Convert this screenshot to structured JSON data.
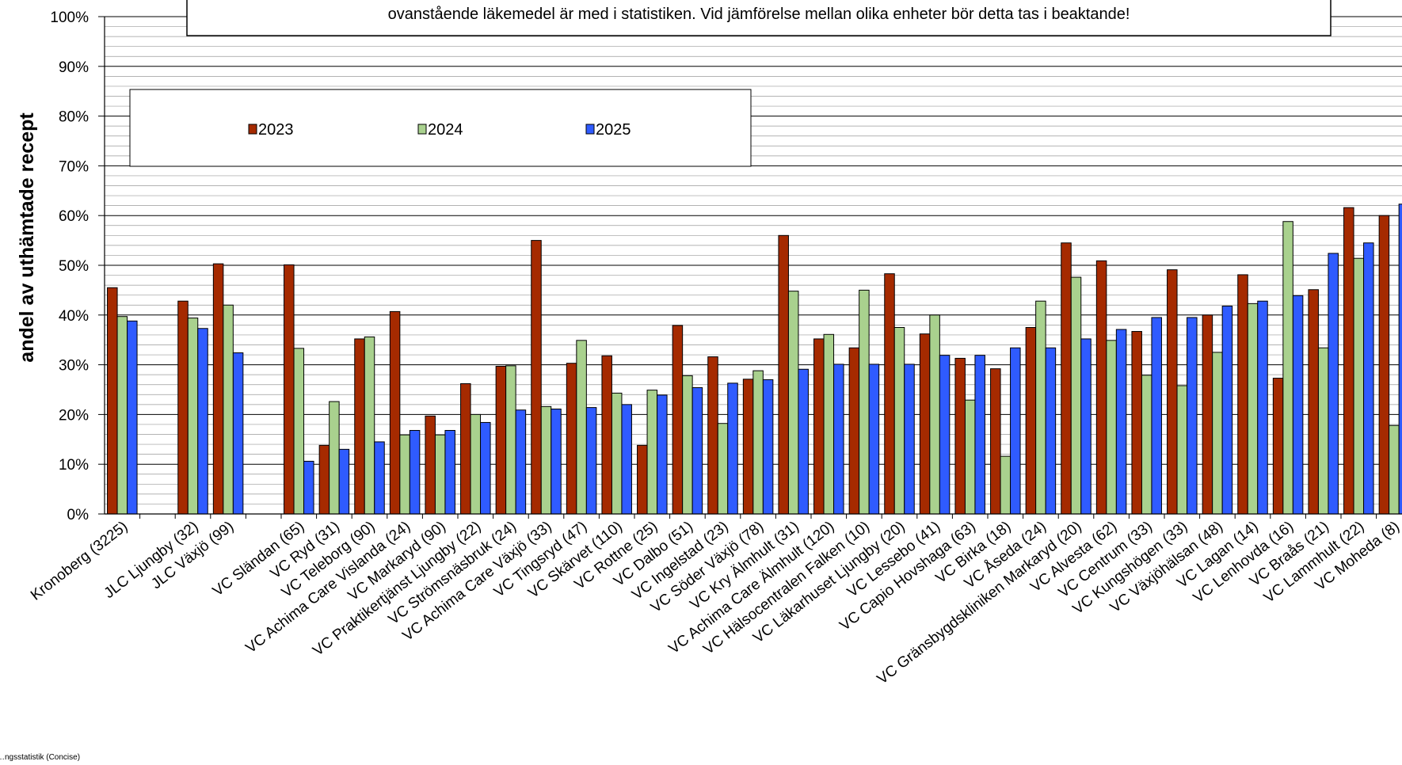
{
  "chart_data": {
    "type": "bar",
    "title": "",
    "ylabel": "andel av uthämtade recept",
    "xlabel": "",
    "ylim": [
      0,
      100
    ],
    "y_ticks": [
      "0%",
      "10%",
      "20%",
      "30%",
      "40%",
      "50%",
      "60%",
      "70%",
      "80%",
      "90%",
      "100%"
    ],
    "grid": true,
    "legend_placement": "top-left",
    "note": "ovanstående läkemedel är med i statistiken. Vid jämförelse mellan olika enheter bör detta tas i beaktande!",
    "source": "…ngsstatistik (Concise)",
    "categories": [
      "Kronoberg (3225)",
      "",
      "JLC Ljungby (32)",
      "JLC Växjö (99)",
      "",
      "VC Sländan (65)",
      "VC Ryd (31)",
      "VC Teleborg (90)",
      "VC Achima Care Vislanda (24)",
      "VC Markaryd (90)",
      "VC Praktikertjänst Ljungby (22)",
      "VC Strömsnäsbruk (24)",
      "VC Achima Care Växjö (33)",
      "VC Tingsryd (47)",
      "VC Skärvet (110)",
      "VC Rottne (25)",
      "VC Dalbo (51)",
      "VC Ingelstad (23)",
      "VC Söder Växjö (78)",
      "VC Kry Älmhult (31)",
      "VC Achima Care Älmhult (120)",
      "VC Hälsocentralen Falken (10)",
      "VC Läkarhuset Ljungby (20)",
      "VC Lessebo (41)",
      "VC Capio Hovshaga (63)",
      "VC Birka (18)",
      "VC Åseda (24)",
      "VC Gränsbygdskliniken Markaryd (20)",
      "VC Alvesta (62)",
      "VC Centrum (33)",
      "VC Kungshögen (33)",
      "VC Växjöhälsan (48)",
      "VC Lagan (14)",
      "VC Lenhovda (16)",
      "VC Braås (21)",
      "VC Lammhult (22)",
      "VC Moheda (8)"
    ],
    "series": [
      {
        "name": "2023",
        "color": "#A52A00",
        "values": [
          45.5,
          null,
          42.8,
          50.3,
          null,
          50.1,
          13.8,
          35.2,
          40.7,
          19.7,
          26.2,
          29.7,
          55.0,
          30.3,
          31.8,
          13.8,
          37.9,
          31.6,
          27.1,
          56.0,
          35.2,
          33.4,
          48.3,
          36.2,
          31.3,
          29.2,
          37.5,
          54.5,
          50.9,
          36.7,
          49.1,
          40.0,
          48.1,
          27.3,
          45.1,
          61.6,
          60.0
        ]
      },
      {
        "name": "2024",
        "color": "#A9D18E",
        "values": [
          39.7,
          null,
          39.4,
          42.0,
          null,
          33.3,
          22.6,
          35.6,
          15.9,
          15.9,
          20.0,
          29.8,
          21.6,
          34.9,
          24.3,
          24.9,
          27.8,
          18.2,
          28.8,
          44.8,
          36.1,
          45.0,
          37.5,
          40.0,
          22.9,
          11.6,
          42.8,
          47.6,
          34.9,
          27.9,
          25.8,
          32.5,
          42.3,
          58.8,
          33.4,
          51.4,
          17.8
        ]
      },
      {
        "name": "2025",
        "color": "#2F5BFF",
        "values": [
          38.8,
          null,
          37.3,
          32.4,
          null,
          10.6,
          13.0,
          14.5,
          16.8,
          16.8,
          18.4,
          20.9,
          21.1,
          21.4,
          22.0,
          23.9,
          25.4,
          26.3,
          27.0,
          29.1,
          30.1,
          30.1,
          30.1,
          31.9,
          31.9,
          33.4,
          33.4,
          35.2,
          37.1,
          39.5,
          39.5,
          41.8,
          42.8,
          43.9,
          52.4,
          54.5,
          62.3
        ]
      }
    ]
  }
}
